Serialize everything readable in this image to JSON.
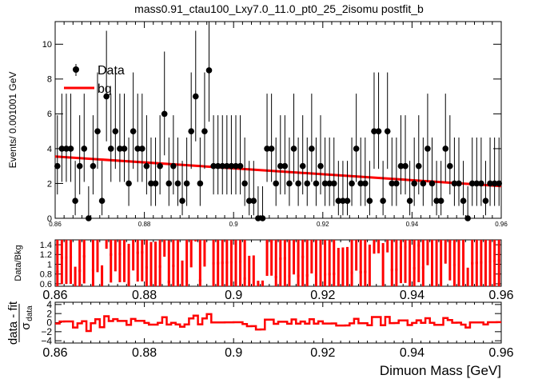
{
  "chart_data": [
    {
      "type": "scatter",
      "panel": "main",
      "title": "mass0.91_ctau100_Lxy7.0_11.0_pt0_25_2isomu   postfit_b",
      "ylabel": "Events/ 0.001001 GeV",
      "xlim": [
        0.86,
        0.96
      ],
      "ylim": [
        0,
        11.3
      ],
      "xticks": [
        0.86,
        0.88,
        0.9,
        0.92,
        0.94,
        0.96
      ],
      "xtick_labels": [
        "0.86",
        "0.88",
        "0.9",
        "0.92",
        "0.94",
        "0.96"
      ],
      "yticks": [
        0,
        2,
        4,
        6,
        8,
        10
      ],
      "ytick_labels": [
        "0",
        "2",
        "4",
        "6",
        "8",
        "10"
      ],
      "legend": {
        "position": "top-left",
        "entries": [
          "Data",
          "bg"
        ]
      },
      "grid": false,
      "series": [
        {
          "name": "Data",
          "style": "points-with-errors",
          "color": "#000000",
          "x": [
            0.8605,
            0.8615,
            0.8625,
            0.8635,
            0.8645,
            0.8655,
            0.8665,
            0.8675,
            0.8685,
            0.8695,
            0.8705,
            0.8715,
            0.8725,
            0.8735,
            0.8745,
            0.8755,
            0.8765,
            0.8775,
            0.8785,
            0.8795,
            0.8805,
            0.8815,
            0.8825,
            0.8835,
            0.8845,
            0.8855,
            0.8865,
            0.8875,
            0.8885,
            0.8895,
            0.8905,
            0.8915,
            0.8925,
            0.8935,
            0.8945,
            0.8955,
            0.8965,
            0.8975,
            0.8985,
            0.8995,
            0.9005,
            0.9015,
            0.9025,
            0.9035,
            0.9045,
            0.9055,
            0.9065,
            0.9075,
            0.9085,
            0.9095,
            0.9105,
            0.9115,
            0.9125,
            0.9135,
            0.9145,
            0.9155,
            0.9165,
            0.9175,
            0.9185,
            0.9195,
            0.9205,
            0.9215,
            0.9225,
            0.9235,
            0.9245,
            0.9255,
            0.9265,
            0.9275,
            0.9285,
            0.9295,
            0.9305,
            0.9315,
            0.9325,
            0.9335,
            0.9345,
            0.9355,
            0.9365,
            0.9375,
            0.9385,
            0.9395,
            0.9405,
            0.9415,
            0.9425,
            0.9435,
            0.9445,
            0.9455,
            0.9465,
            0.9475,
            0.9485,
            0.9495,
            0.9505,
            0.9515,
            0.9525,
            0.9535,
            0.9545,
            0.9555,
            0.9565,
            0.9575,
            0.9585,
            0.9595
          ],
          "y": [
            3,
            4,
            4,
            4,
            1,
            3,
            4,
            0,
            3,
            5,
            1,
            7,
            4,
            5,
            4,
            4,
            2,
            5,
            4,
            4,
            3,
            2,
            2,
            3,
            6,
            2,
            3,
            2,
            1,
            2,
            5,
            7,
            2,
            5,
            8.5,
            3,
            3,
            3,
            3,
            3,
            3,
            3,
            2,
            1,
            1,
            0,
            0,
            4,
            4,
            2,
            3,
            3,
            2,
            4,
            2,
            3,
            2,
            4,
            2,
            3,
            2,
            2,
            2,
            1,
            1,
            1,
            2,
            4,
            2,
            2,
            1,
            5,
            5,
            1,
            5,
            2,
            2,
            3,
            3,
            1,
            2,
            3,
            2,
            4,
            2,
            1,
            1,
            4,
            3,
            2,
            2,
            1,
            0,
            2,
            2,
            2,
            1,
            2,
            2,
            2
          ],
          "yerr_low": [
            1.63,
            1.91,
            1.91,
            1.91,
            0.83,
            1.63,
            1.91,
            0,
            1.63,
            2.16,
            0.83,
            2.58,
            1.91,
            2.16,
            1.91,
            1.91,
            1.29,
            2.16,
            1.91,
            1.91,
            1.63,
            1.29,
            1.29,
            1.63,
            2.38,
            1.29,
            1.63,
            1.29,
            0.83,
            1.29,
            2.16,
            2.58,
            1.29,
            2.16,
            2.95,
            1.63,
            1.63,
            1.63,
            1.63,
            1.63,
            1.63,
            1.63,
            1.29,
            0.83,
            0.83,
            0,
            0,
            1.91,
            1.91,
            1.29,
            1.63,
            1.63,
            1.29,
            1.91,
            1.29,
            1.63,
            1.29,
            1.91,
            1.29,
            1.63,
            1.29,
            1.29,
            1.29,
            0.83,
            0.83,
            0.83,
            1.29,
            1.91,
            1.29,
            1.29,
            0.83,
            2.16,
            2.16,
            0.83,
            2.16,
            1.29,
            1.29,
            1.63,
            1.63,
            0.83,
            1.29,
            1.63,
            1.29,
            1.91,
            1.29,
            0.83,
            0.83,
            1.91,
            1.63,
            1.29,
            1.29,
            0.83,
            0,
            1.29,
            1.29,
            1.29,
            0.83,
            1.29,
            1.29,
            1.29
          ],
          "yerr_high": [
            2.92,
            3.16,
            3.16,
            3.16,
            2.3,
            2.92,
            3.16,
            1.84,
            2.92,
            3.38,
            2.3,
            3.77,
            3.16,
            3.38,
            3.16,
            3.16,
            2.64,
            3.38,
            3.16,
            3.16,
            2.92,
            2.64,
            2.64,
            2.92,
            3.58,
            2.64,
            2.92,
            2.64,
            2.3,
            2.64,
            3.38,
            3.77,
            2.64,
            3.38,
            4.1,
            2.92,
            2.92,
            2.92,
            2.92,
            2.92,
            2.92,
            2.92,
            2.64,
            2.3,
            2.3,
            1.84,
            1.84,
            3.16,
            3.16,
            2.64,
            2.92,
            2.92,
            2.64,
            3.16,
            2.64,
            2.92,
            2.64,
            3.16,
            2.64,
            2.92,
            2.64,
            2.64,
            2.64,
            2.3,
            2.3,
            2.3,
            2.64,
            3.16,
            2.64,
            2.64,
            2.3,
            3.38,
            3.38,
            2.3,
            3.38,
            2.64,
            2.64,
            2.92,
            2.92,
            2.3,
            2.64,
            2.92,
            2.64,
            3.16,
            2.64,
            2.3,
            2.3,
            3.16,
            2.92,
            2.64,
            2.64,
            2.3,
            1.84,
            2.64,
            2.64,
            2.64,
            2.3,
            2.64,
            2.64,
            2.64
          ]
        },
        {
          "name": "bg",
          "style": "line",
          "color": "#ff0000",
          "x": [
            0.86,
            0.96
          ],
          "y": [
            3.55,
            1.85
          ]
        }
      ]
    },
    {
      "type": "scatter",
      "panel": "ratio",
      "ylabel": "Data/Bkg",
      "xlim": [
        0.86,
        0.96
      ],
      "ylim": [
        0.55,
        1.5
      ],
      "xticks": [
        0.86,
        0.88,
        0.9,
        0.92,
        0.94,
        0.96
      ],
      "xtick_labels": [
        "0.86",
        "0.88",
        "0.9",
        "0.92",
        "0.94",
        "0.96"
      ],
      "yticks": [
        0.6,
        0.8,
        1,
        1.2,
        1.4
      ],
      "ytick_labels": [
        "0.6",
        "0.8",
        "1",
        "1.2",
        "1.4"
      ],
      "series": [
        {
          "name": "",
          "color": "#ff0000",
          "style": "points-with-errors"
        }
      ]
    },
    {
      "type": "line",
      "panel": "pull",
      "ylabel": "data - fit",
      "ylabel_sub": "σ",
      "ylabel_sub_index": "data",
      "xlabel": "Dimuon Mass [GeV]",
      "xlim": [
        0.86,
        0.96
      ],
      "ylim": [
        -4.5,
        4.5
      ],
      "xticks": [
        0.86,
        0.88,
        0.9,
        0.92,
        0.94,
        0.96
      ],
      "xtick_labels": [
        "0.86",
        "0.88",
        "0.9",
        "0.92",
        "0.94",
        "0.96"
      ],
      "yticks": [
        -4,
        -2,
        0,
        2,
        4
      ],
      "ytick_labels": [
        "−4",
        "−2",
        "0",
        "2",
        "4"
      ],
      "series": [
        {
          "name": "",
          "color": "#ff0000",
          "style": "step"
        }
      ]
    }
  ]
}
